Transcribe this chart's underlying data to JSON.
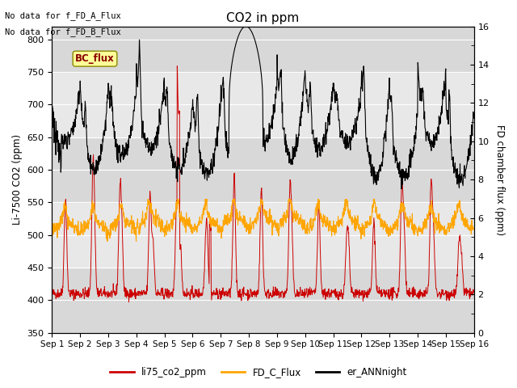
{
  "title": "CO2 in ppm",
  "ylabel_left": "Li-7500 CO2 (ppm)",
  "ylabel_right": "FD chamber flux (ppm)",
  "ylim_left": [
    350,
    820
  ],
  "ylim_right": [
    0,
    16
  ],
  "yticks_left": [
    350,
    400,
    450,
    500,
    550,
    600,
    650,
    700,
    750,
    800
  ],
  "yticks_right": [
    0,
    2,
    4,
    6,
    8,
    10,
    12,
    14,
    16
  ],
  "xticklabels": [
    "Sep 1",
    "Sep 2",
    "Sep 3",
    "Sep 4",
    "Sep 5",
    "Sep 6",
    "Sep 7",
    "Sep 8",
    "Sep 9",
    "Sep 10",
    "Sep 11",
    "Sep 12",
    "Sep 13",
    "Sep 14",
    "Sep 15",
    "Sep 16"
  ],
  "text_nodata1": "No data for f_FD_A_Flux",
  "text_nodata2": "No data for f_FD_B_Flux",
  "bc_flux_label": "BC_flux",
  "legend_entries": [
    "li75_co2_ppm",
    "FD_C_Flux",
    "er_ANNnight"
  ],
  "legend_colors": [
    "#cc0000",
    "#ffa500",
    "#000000"
  ],
  "color_red": "#cc0000",
  "color_orange": "#ffa500",
  "color_black": "#000000",
  "bg_light": "#dcdcdc",
  "bg_dark": "#c8c8c8",
  "n_days": 15,
  "points_per_day": 96,
  "seed": 42
}
